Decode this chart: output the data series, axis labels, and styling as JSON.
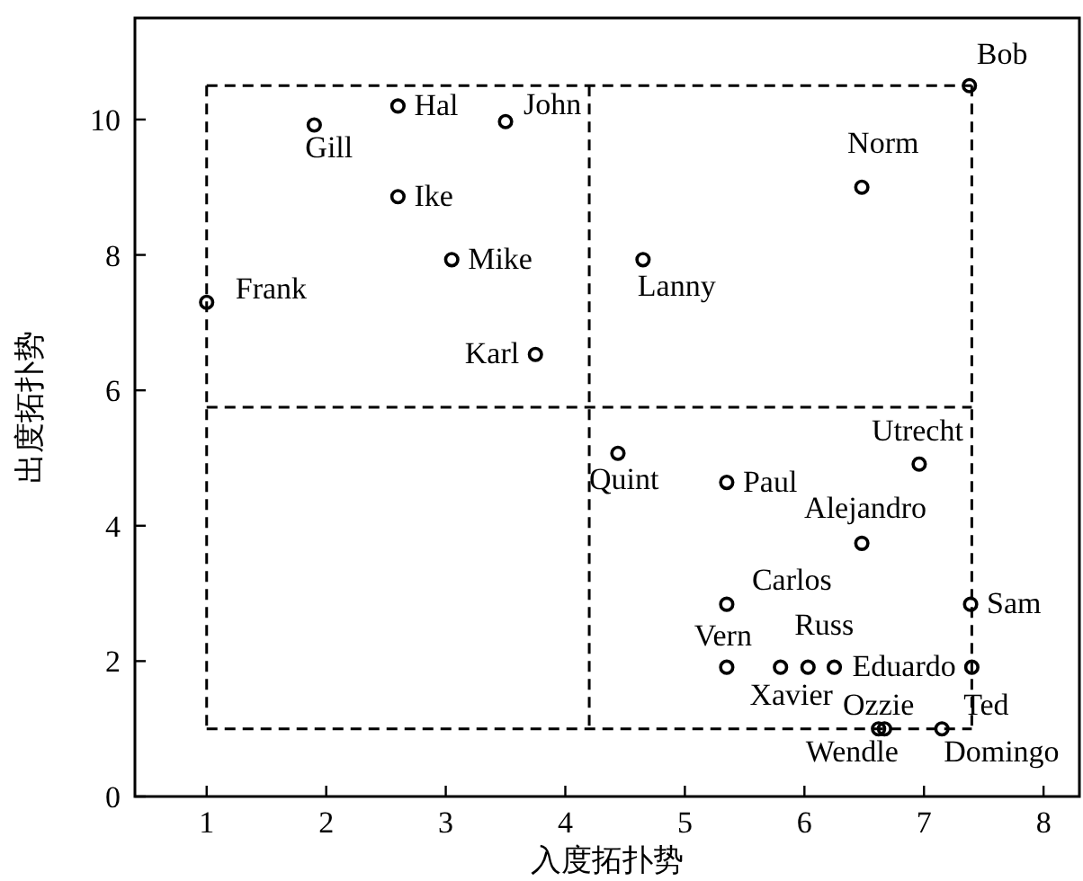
{
  "chart_data": {
    "type": "scatter",
    "xlabel": "入度拓扑势",
    "ylabel": "出度拓扑势",
    "xlim": [
      0.4,
      8.3
    ],
    "ylim": [
      0,
      11.5
    ],
    "xticks": [
      1,
      2,
      3,
      4,
      5,
      6,
      7,
      8
    ],
    "yticks": [
      0,
      2,
      4,
      6,
      8,
      10
    ],
    "grid": false,
    "marker": "circle",
    "series": [
      {
        "color": "#000000",
        "x": [
          1.0,
          1.9,
          2.6,
          3.5,
          2.6,
          3.05,
          3.75,
          7.38,
          6.48,
          4.65,
          4.44,
          5.35,
          6.96,
          6.48,
          5.35,
          7.39,
          5.35,
          5.8,
          6.03,
          6.25,
          7.4,
          6.62,
          6.67,
          7.15
        ],
        "values": [
          7.3,
          9.92,
          10.2,
          9.97,
          8.86,
          7.93,
          6.53,
          10.5,
          9.0,
          7.93,
          5.07,
          4.64,
          4.91,
          3.74,
          2.84,
          2.84,
          1.91,
          1.91,
          1.91,
          1.91,
          1.91,
          1.0,
          1.0,
          1.0
        ]
      },
      {
        "type": "line",
        "color": "#000000",
        "line_style": "dashed",
        "marker": "none",
        "x": [
          1,
          7.4
        ],
        "values": [
          10.5,
          10.5
        ]
      },
      {
        "type": "line",
        "color": "#000000",
        "line_style": "dashed",
        "marker": "none",
        "x": [
          1,
          7.4
        ],
        "values": [
          5.75,
          5.75
        ]
      },
      {
        "type": "line",
        "color": "#000000",
        "line_style": "dashed",
        "marker": "none",
        "x": [
          1,
          7.4
        ],
        "values": [
          1,
          1
        ]
      },
      {
        "type": "line",
        "color": "#000000",
        "line_style": "dashed",
        "marker": "none",
        "x": [
          1,
          1
        ],
        "values": [
          10.5,
          1
        ]
      },
      {
        "type": "line",
        "color": "#000000",
        "line_style": "dashed",
        "marker": "none",
        "x": [
          4.2,
          4.2
        ],
        "values": [
          10.5,
          1
        ]
      },
      {
        "type": "line",
        "color": "#000000",
        "line_style": "dashed",
        "marker": "none",
        "x": [
          7.4,
          7.4
        ],
        "values": [
          10.5,
          1
        ]
      }
    ],
    "annotations": [
      {
        "text": "Frank",
        "x": 1.0,
        "y": 7.3
      },
      {
        "text": "Gill",
        "x": 1.9,
        "y": 9.92
      },
      {
        "text": "Hal",
        "x": 2.6,
        "y": 10.2
      },
      {
        "text": "John",
        "x": 3.5,
        "y": 9.97
      },
      {
        "text": "Ike",
        "x": 2.6,
        "y": 8.86
      },
      {
        "text": "Mike",
        "x": 3.05,
        "y": 7.93
      },
      {
        "text": "Karl",
        "x": 3.75,
        "y": 6.53
      },
      {
        "text": "Bob",
        "x": 7.38,
        "y": 10.5
      },
      {
        "text": "Norm",
        "x": 6.48,
        "y": 9.0
      },
      {
        "text": "Lanny",
        "x": 4.65,
        "y": 7.93
      },
      {
        "text": "Quint",
        "x": 4.44,
        "y": 5.07
      },
      {
        "text": "Paul",
        "x": 5.35,
        "y": 4.64
      },
      {
        "text": "Utrecht",
        "x": 6.96,
        "y": 4.91
      },
      {
        "text": "Alejandro",
        "x": 6.48,
        "y": 3.74
      },
      {
        "text": "Carlos",
        "x": 5.35,
        "y": 2.84
      },
      {
        "text": "Sam",
        "x": 7.39,
        "y": 2.84
      },
      {
        "text": "Vern",
        "x": 5.35,
        "y": 1.91
      },
      {
        "text": "Xavier",
        "x": 5.8,
        "y": 1.91
      },
      {
        "text": "Russ",
        "x": 6.03,
        "y": 1.91
      },
      {
        "text": "Eduardo",
        "x": 6.25,
        "y": 1.91
      },
      {
        "text": "Ozzie",
        "x": 6.62,
        "y": 1.0
      },
      {
        "text": "Wendle",
        "x": 6.67,
        "y": 1.0
      },
      {
        "text": "Ted",
        "x": 7.15,
        "y": 1.0
      },
      {
        "text": "Domingo",
        "x": 7.15,
        "y": 1.0
      }
    ]
  }
}
